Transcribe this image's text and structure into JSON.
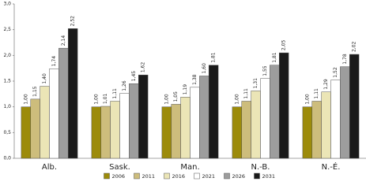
{
  "chart_data": {
    "type": "bar",
    "categories": [
      "Alb.",
      "Sask.",
      "Man.",
      "N.-B.",
      "N.-É."
    ],
    "series": [
      {
        "name": "2006",
        "color": "#9c8b0a",
        "values": [
          1.0,
          1.0,
          1.0,
          1.0,
          1.0
        ],
        "value_labels": [
          "1,00",
          "1,00",
          "1,00",
          "1,00",
          "1,00"
        ]
      },
      {
        "name": "2011",
        "color": "#cdbd7c",
        "values": [
          1.15,
          1.01,
          1.05,
          1.11,
          1.11
        ],
        "value_labels": [
          "1,15",
          "1,01",
          "1,05",
          "1,11",
          "1,11"
        ]
      },
      {
        "name": "2016",
        "color": "#ebe5b6",
        "values": [
          1.4,
          1.11,
          1.19,
          1.31,
          1.29
        ],
        "value_labels": [
          "1,40",
          "1,11",
          "1,19",
          "1,31",
          "1,29"
        ]
      },
      {
        "name": "2021",
        "color": "#ffffff",
        "values": [
          1.74,
          1.26,
          1.38,
          1.55,
          1.52
        ],
        "value_labels": [
          "1,74",
          "1,26",
          "1,38",
          "1,55",
          "1,52"
        ]
      },
      {
        "name": "2026",
        "color": "#9d9d9d",
        "values": [
          2.14,
          1.45,
          1.6,
          1.81,
          1.78
        ],
        "value_labels": [
          "2,14",
          "1,45",
          "1,60",
          "1,81",
          "1,78"
        ]
      },
      {
        "name": "2031",
        "color": "#1a1a1a",
        "values": [
          2.52,
          1.62,
          1.81,
          2.05,
          2.02
        ],
        "value_labels": [
          "2,52",
          "1,62",
          "1,81",
          "2,05",
          "2,02"
        ]
      }
    ],
    "ylim": [
      0,
      3
    ],
    "yticks": [
      {
        "value": 0,
        "label": "0,0"
      },
      {
        "value": 0.5,
        "label": "0,5"
      },
      {
        "value": 1,
        "label": "1,0"
      },
      {
        "value": 1.5,
        "label": "1,5"
      },
      {
        "value": 2,
        "label": "2,0"
      },
      {
        "value": 2.5,
        "label": "2,5"
      },
      {
        "value": 3,
        "label": "3,0"
      }
    ],
    "grid": false,
    "legend": "bottom"
  }
}
